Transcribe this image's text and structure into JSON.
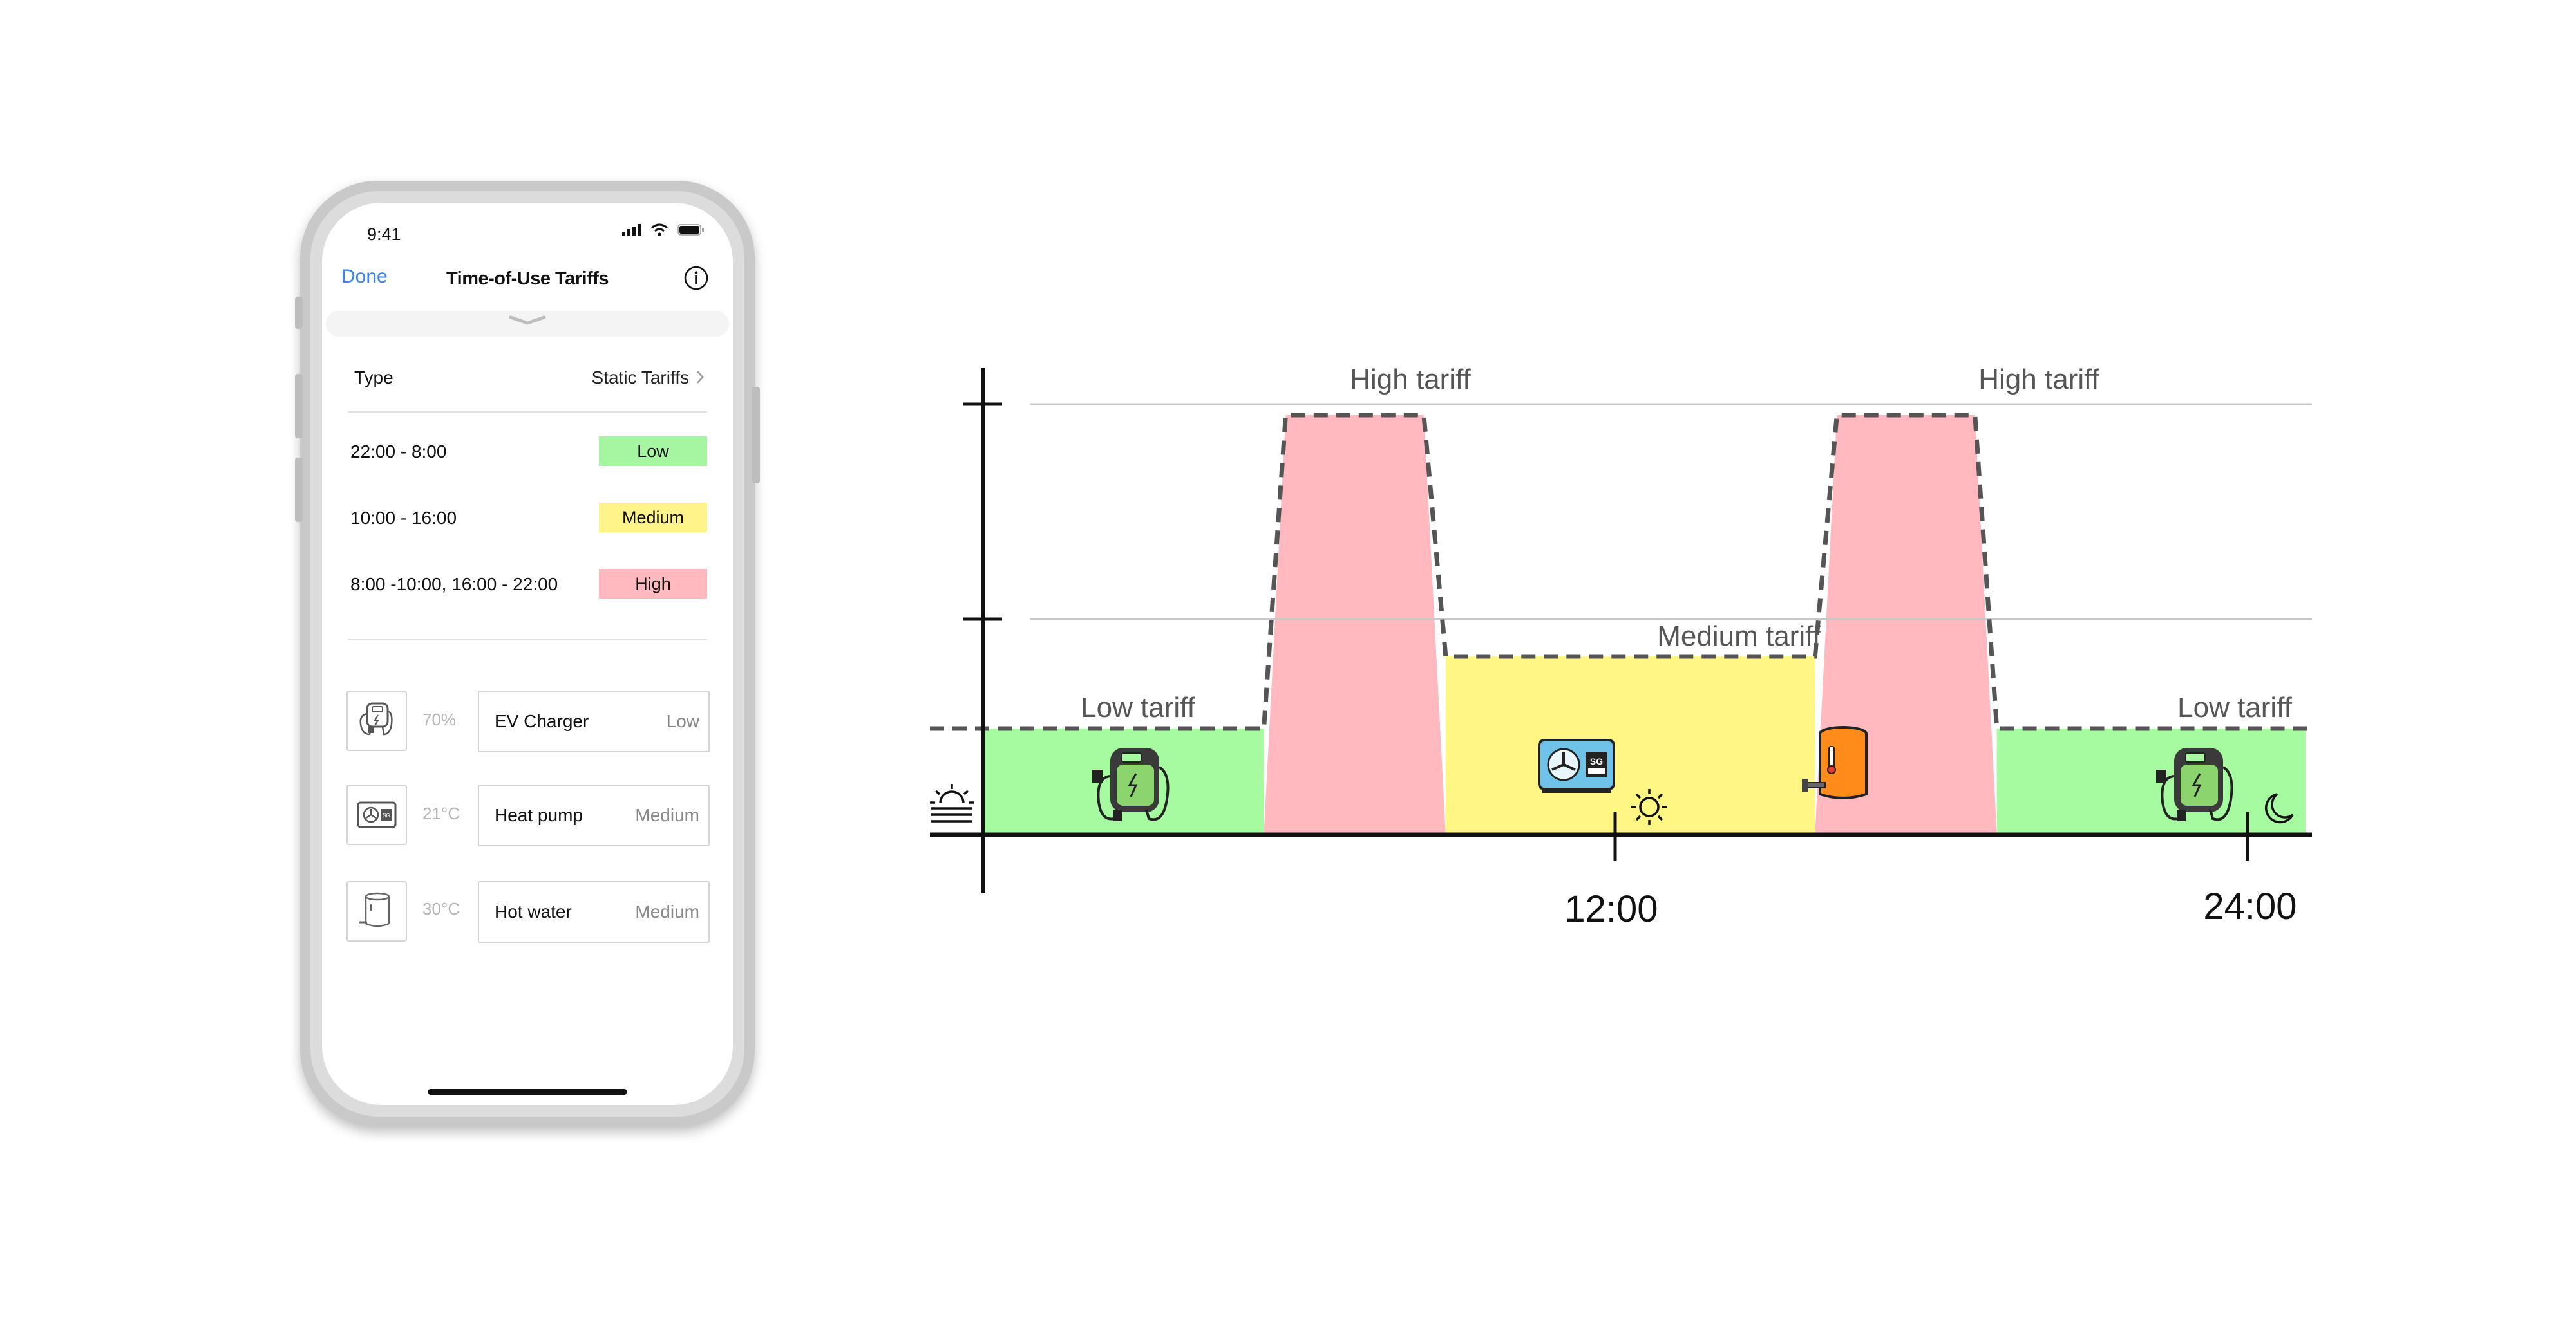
{
  "phone": {
    "status_time": "9:41",
    "nav": {
      "done_label": "Done",
      "title": "Time-of-Use  Tariffs"
    },
    "type_row": {
      "label": "Type",
      "value": "Static Tariffs"
    },
    "tariffs": [
      {
        "time": "22:00 - 8:00",
        "level": "Low",
        "color": "#a6f5a0"
      },
      {
        "time": "10:00 - 16:00",
        "level": "Medium",
        "color": "#fff38a"
      },
      {
        "time": "8:00 -10:00, 16:00 - 22:00",
        "level": "High",
        "color": "#ffb9bf"
      }
    ],
    "devices": [
      {
        "icon": "ev-charger-icon",
        "value": "70%",
        "name": "EV Charger",
        "level": "Low"
      },
      {
        "icon": "heat-pump-icon",
        "value": "21°C",
        "name": "Heat pump",
        "level": "Medium"
      },
      {
        "icon": "hot-water-icon",
        "value": "30°C",
        "name": "Hot water",
        "level": "Medium"
      }
    ]
  },
  "chart_data": {
    "type": "area",
    "colors": {
      "low": "#a6fba0",
      "medium": "#fff684",
      "high": "#ffb9bf"
    },
    "x_ticks": [
      "12:00",
      "24:00"
    ],
    "x_range_hours": [
      0,
      24
    ],
    "segments": [
      {
        "label": "Low tariff",
        "level": "low",
        "start": 0,
        "end": 5.1
      },
      {
        "label": "High tariff",
        "level": "high",
        "start": 5.1,
        "end": 8.4
      },
      {
        "label": "Medium tariff",
        "level": "medium",
        "start": 8.4,
        "end": 15.1
      },
      {
        "label": "High tariff",
        "level": "high",
        "start": 15.1,
        "end": 18.4
      },
      {
        "label": "Low tariff",
        "level": "low",
        "start": 18.4,
        "end": 24
      }
    ],
    "icons": [
      "sunrise-icon",
      "ev-charger-icon",
      "heat-pump-icon",
      "sun-icon",
      "hot-water-tank-icon",
      "ev-charger-icon",
      "moon-icon"
    ]
  }
}
